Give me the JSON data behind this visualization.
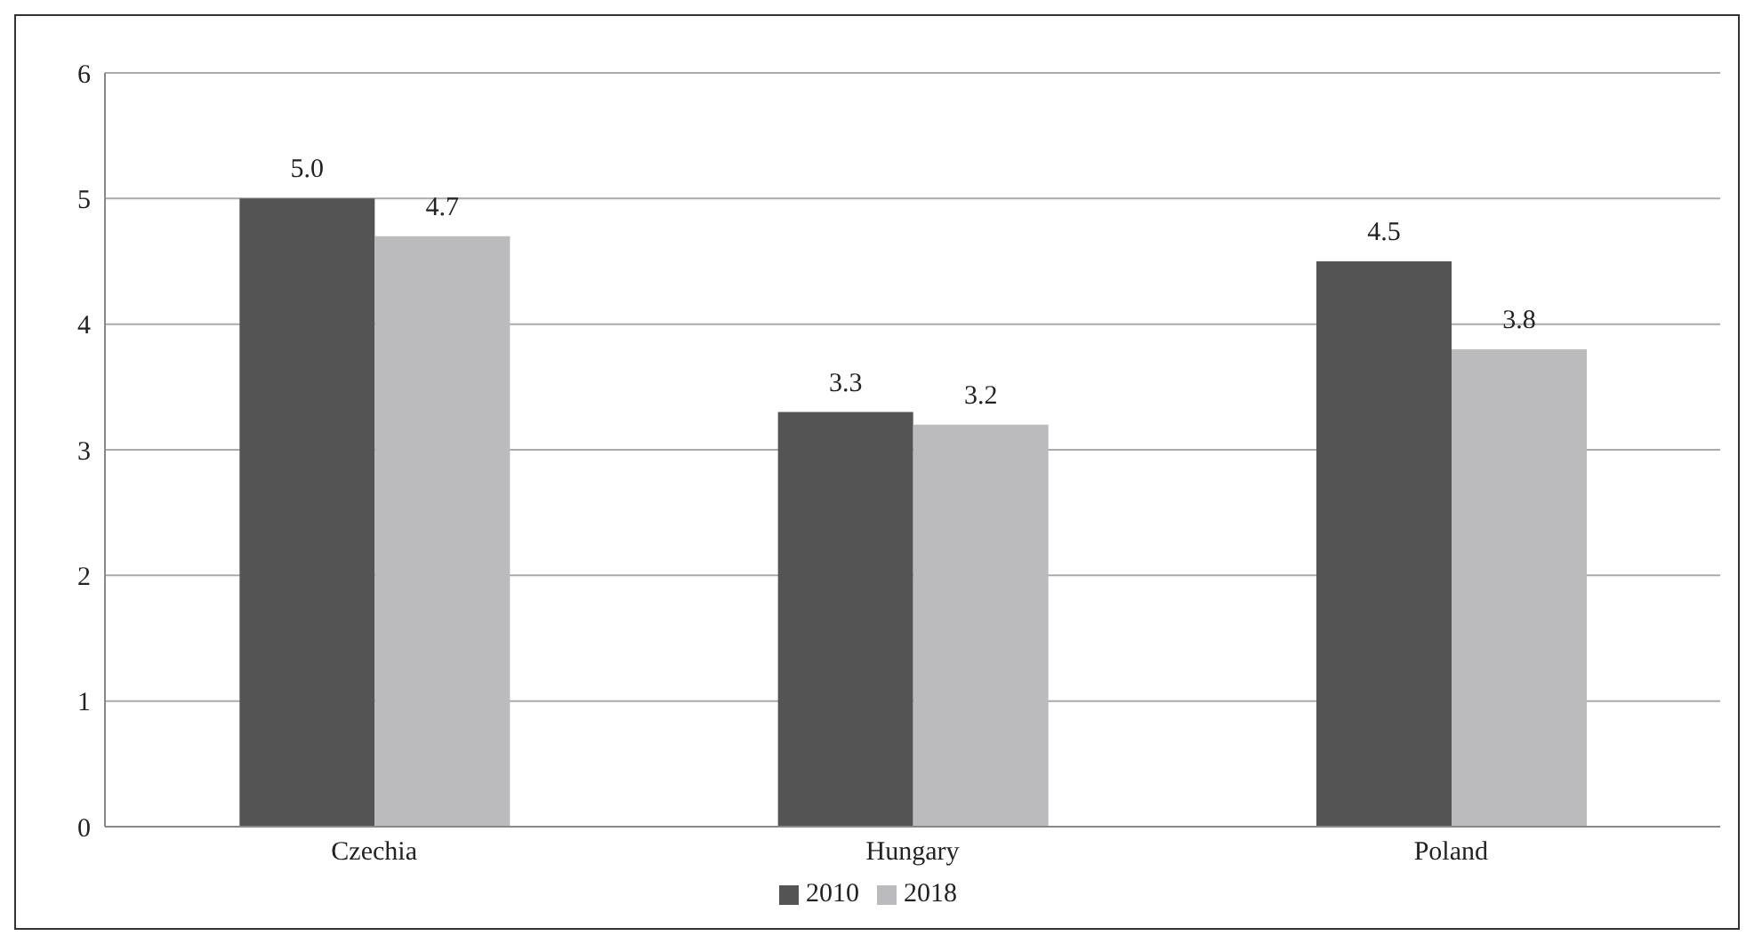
{
  "chart_data": {
    "type": "bar",
    "categories": [
      "Czechia",
      "Hungary",
      "Poland"
    ],
    "series": [
      {
        "name": "2010",
        "color": "#545454",
        "values": [
          5.0,
          3.3,
          4.5
        ],
        "value_labels": [
          "5.0",
          "3.3",
          "4.5"
        ]
      },
      {
        "name": "2018",
        "color": "#bbbbbd",
        "values": [
          4.7,
          3.2,
          3.8
        ],
        "value_labels": [
          "4.7",
          "3.2",
          "3.8"
        ]
      }
    ],
    "ylim": [
      0,
      6
    ],
    "yticks": [
      0,
      1,
      2,
      3,
      4,
      5,
      6
    ],
    "grid": "y",
    "legend": "bottom"
  }
}
